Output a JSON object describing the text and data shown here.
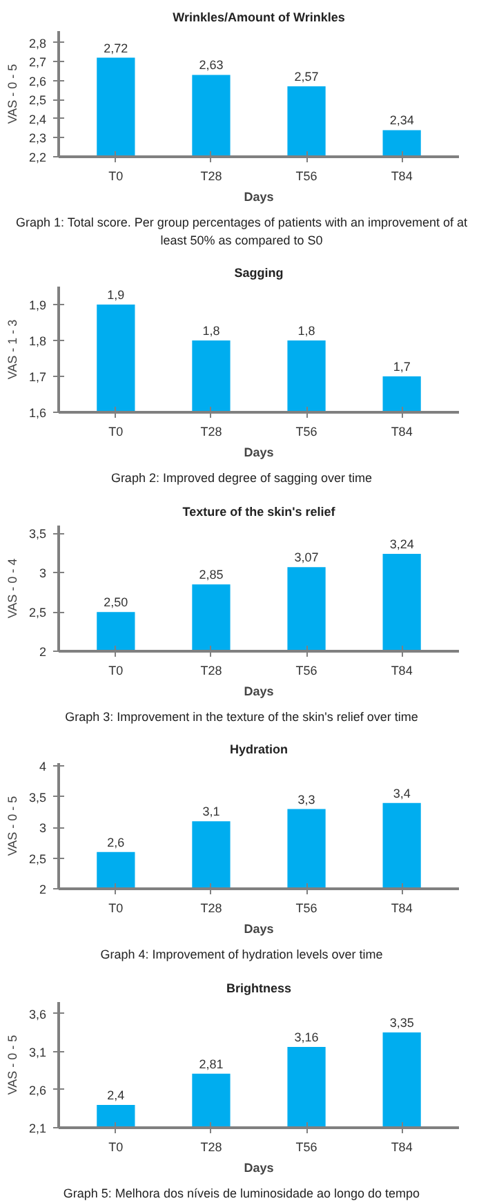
{
  "chart_data": [
    {
      "type": "bar",
      "title": "Wrinkles/Amount of Wrinkles",
      "xlabel": "Days",
      "ylabel": "VAS - 0 - 5",
      "categories": [
        "T0",
        "T28",
        "T56",
        "T84"
      ],
      "values": [
        2.72,
        2.63,
        2.57,
        2.34
      ],
      "value_labels": [
        "2,72",
        "2,63",
        "2,57",
        "2,34"
      ],
      "color": "#00adef",
      "ylim": [
        2.2,
        2.86
      ],
      "yticks": [
        {
          "value": 2.2,
          "label": "2,2"
        },
        {
          "value": 2.3,
          "label": "2,3"
        },
        {
          "value": 2.4,
          "label": "2,4"
        },
        {
          "value": 2.5,
          "label": "2,5"
        },
        {
          "value": 2.6,
          "label": "2,6"
        },
        {
          "value": 2.7,
          "label": "2,7"
        },
        {
          "value": 2.8,
          "label": "2,8"
        }
      ],
      "grid": false,
      "annotations": [
        "Graph 1: Total score. Per group percentages of patients with an improvement of at least 50% as compared to S0"
      ]
    },
    {
      "type": "bar",
      "title": "Sagging",
      "xlabel": "Days",
      "ylabel": "VAS - 1 - 3",
      "categories": [
        "T0",
        "T28",
        "T56",
        "T84"
      ],
      "values": [
        1.9,
        1.8,
        1.8,
        1.7
      ],
      "value_labels": [
        "1,9",
        "1,8",
        "1,8",
        "1,7"
      ],
      "color": "#00adef",
      "ylim": [
        1.6,
        1.95
      ],
      "yticks": [
        {
          "value": 1.6,
          "label": "1,6"
        },
        {
          "value": 1.7,
          "label": "1,7"
        },
        {
          "value": 1.8,
          "label": "1,8"
        },
        {
          "value": 1.9,
          "label": "1,9"
        }
      ],
      "grid": false,
      "annotations": [
        "Graph 2: Improved degree of sagging over time"
      ]
    },
    {
      "type": "bar",
      "title": "Texture of the skin's relief",
      "xlabel": "Days",
      "ylabel": "VAS - 0 - 4",
      "categories": [
        "T0",
        "T28",
        "T56",
        "T84"
      ],
      "values": [
        2.5,
        2.85,
        3.07,
        3.24
      ],
      "value_labels": [
        "2,50",
        "2,85",
        "3,07",
        "3,24"
      ],
      "color": "#00adef",
      "ylim": [
        2,
        3.6
      ],
      "yticks": [
        2,
        {
          "value": 2.5,
          "label": "2,5"
        },
        3,
        {
          "value": 3.5,
          "label": "3,5"
        }
      ],
      "grid": false,
      "annotations": [
        "Graph 3: Improvement in the texture of the skin's relief over time"
      ]
    },
    {
      "type": "bar",
      "title": "Hydration",
      "xlabel": "Days",
      "ylabel": "VAS - 0 - 5",
      "categories": [
        "T0",
        "T28",
        "T56",
        "T84"
      ],
      "values": [
        2.6,
        3.1,
        3.3,
        3.4
      ],
      "value_labels": [
        "2,6",
        "3,1",
        "3,3",
        "3,4"
      ],
      "color": "#00adef",
      "ylim": [
        2,
        4.05
      ],
      "yticks": [
        2,
        {
          "value": 2.5,
          "label": "2,5"
        },
        3,
        {
          "value": 3.5,
          "label": "3,5"
        },
        4
      ],
      "grid": false,
      "annotations": [
        "Graph 4: Improvement of hydration levels over time"
      ]
    },
    {
      "type": "bar",
      "title": "Brightness",
      "xlabel": "Days",
      "ylabel": "VAS - 0 - 5",
      "categories": [
        "T0",
        "T28",
        "T56",
        "T84"
      ],
      "values": [
        2.4,
        2.81,
        3.16,
        3.35
      ],
      "value_labels": [
        "2,4",
        "2,81",
        "3,16",
        "3,35"
      ],
      "color": "#00adef",
      "ylim": [
        2.1,
        3.75
      ],
      "yticks": [
        {
          "value": 2.1,
          "label": "2,1"
        },
        {
          "value": 2.6,
          "label": "2,6"
        },
        {
          "value": 3.1,
          "label": "3,1"
        },
        {
          "value": 3.6,
          "label": "3,6"
        }
      ],
      "grid": false,
      "annotations": [
        "Graph 5: Melhora dos níveis de luminosidade ao longo do tempo"
      ]
    }
  ]
}
